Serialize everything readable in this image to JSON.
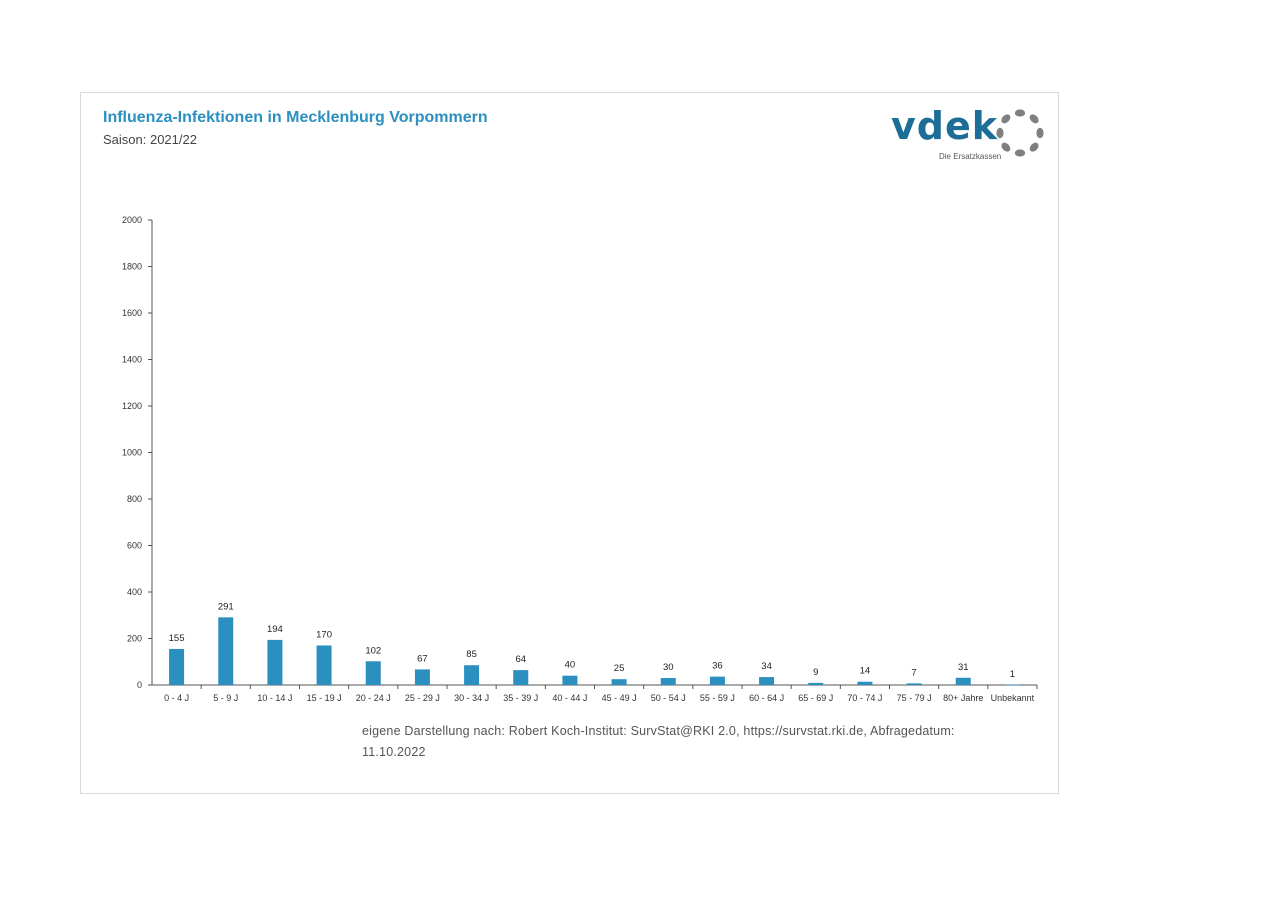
{
  "header": {
    "title": "Influenza-Infektionen in Mecklenburg Vorpommern",
    "subtitle": "Saison: 2021/22"
  },
  "logo": {
    "wordmark": "vdek",
    "tagline": "Die Ersatzkassen",
    "color": "#1d6e96",
    "ring_color": "#7f7f7f"
  },
  "colors": {
    "bar": "#2b8fc0",
    "title": "#2b8fc0",
    "axis": "#555555"
  },
  "chart_data": {
    "type": "bar",
    "title": "",
    "xlabel": "",
    "ylabel": "",
    "ylim": [
      0,
      2000
    ],
    "yticks": [
      0,
      200,
      400,
      600,
      800,
      1000,
      1200,
      1400,
      1600,
      1800,
      2000
    ],
    "grid": false,
    "categories": [
      "0 - 4 J",
      "5 - 9 J",
      "10 - 14 J",
      "15 - 19 J",
      "20 - 24 J",
      "25 - 29 J",
      "30 - 34 J",
      "35 - 39 J",
      "40 - 44 J",
      "45 - 49 J",
      "50 - 54 J",
      "55 - 59 J",
      "60 - 64 J",
      "65 - 69 J",
      "70 - 74 J",
      "75 - 79 J",
      "80+ Jahre",
      "Unbekannt"
    ],
    "values": [
      155,
      291,
      194,
      170,
      102,
      67,
      85,
      64,
      40,
      25,
      30,
      36,
      34,
      9,
      14,
      7,
      31,
      1
    ]
  },
  "source": {
    "text": "eigene Darstellung nach: Robert Koch-Institut: SurvStat@RKI 2.0, https://survstat.rki.de, Abfragedatum: 11.10.2022"
  }
}
